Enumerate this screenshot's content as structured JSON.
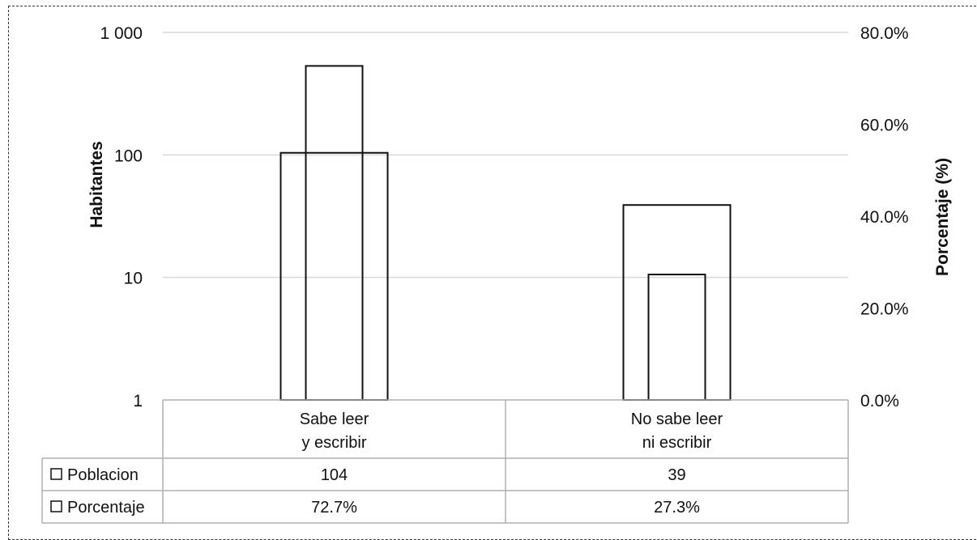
{
  "chart_data": {
    "type": "bar",
    "categories": [
      [
        "Sabe leer",
        "y escribir"
      ],
      [
        "No sabe leer",
        "ni escribir"
      ]
    ],
    "series": [
      {
        "name": "Poblacion",
        "values": [
          104,
          39
        ],
        "labels": [
          "104",
          "39"
        ],
        "axis": "left"
      },
      {
        "name": "Porcentaje",
        "values": [
          72.7,
          27.3
        ],
        "labels": [
          "72.7%",
          "27.3%"
        ],
        "axis": "right"
      }
    ],
    "ylabel": "Habitantes",
    "y2label": "Porcentaje (%)",
    "y_scale": "log",
    "ylim": [
      1,
      1000
    ],
    "y_ticks": [
      "1",
      "10",
      "100",
      "1 000"
    ],
    "y2lim": [
      0,
      80
    ],
    "y2_ticks": [
      "0.0%",
      "20.0%",
      "40.0%",
      "60.0%",
      "80.0%"
    ],
    "grid": true,
    "legend": "data-table"
  }
}
